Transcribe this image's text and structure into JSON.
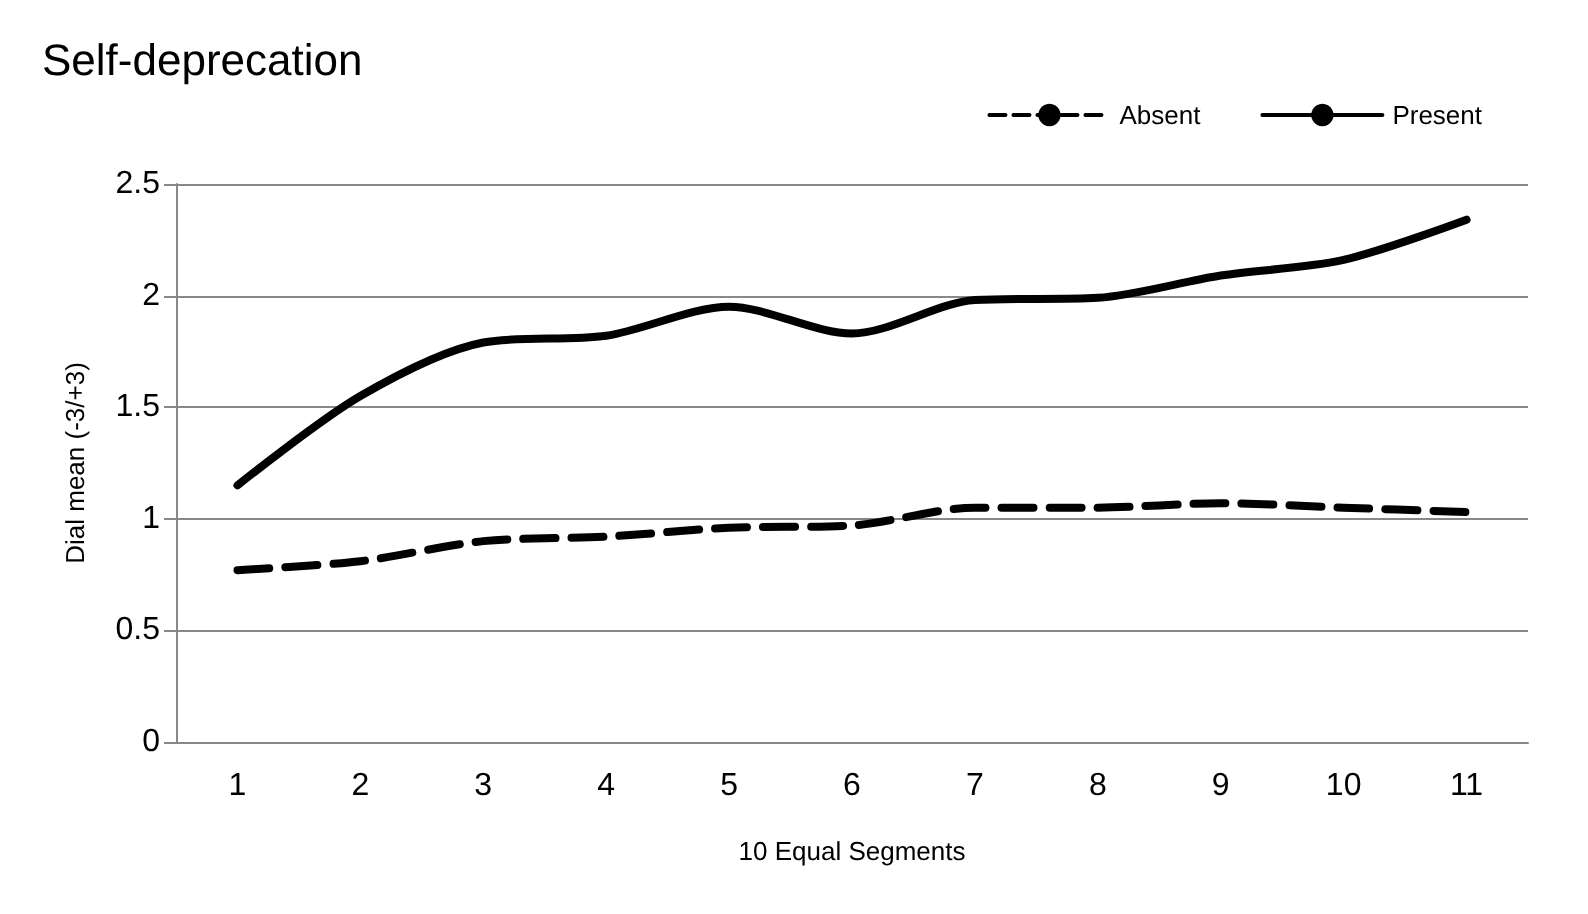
{
  "chart_data": {
    "type": "line",
    "title": "Self-deprecation",
    "xlabel": "10 Equal Segments",
    "ylabel": "Dial mean (-3/+3)",
    "categories": [
      "1",
      "2",
      "3",
      "4",
      "5",
      "6",
      "7",
      "8",
      "9",
      "10",
      "11"
    ],
    "series": [
      {
        "name": "Absent",
        "color": "#000000",
        "line_style": "dashed",
        "values": [
          0.77,
          0.81,
          0.9,
          0.92,
          0.96,
          0.97,
          1.05,
          1.05,
          1.07,
          1.05,
          1.03
        ]
      },
      {
        "name": "Present",
        "color": "#000000",
        "line_style": "solid",
        "values": [
          1.15,
          1.55,
          1.79,
          1.82,
          1.95,
          1.83,
          1.98,
          1.99,
          2.09,
          2.16,
          2.34
        ]
      }
    ],
    "ylim": [
      0,
      2.5
    ],
    "yticks": [
      0,
      0.5,
      1,
      1.5,
      2,
      2.5
    ],
    "grid": "y",
    "legend": "top right",
    "marker": "none"
  }
}
